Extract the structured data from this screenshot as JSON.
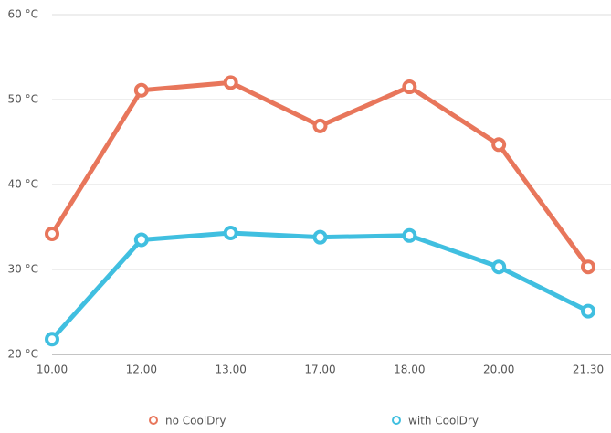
{
  "chart_data": {
    "type": "line",
    "categories": [
      "10.00",
      "12.00",
      "13.00",
      "17.00",
      "18.00",
      "20.00",
      "21.30"
    ],
    "series": [
      {
        "name": "no CoolDry",
        "color": "#e8765b",
        "values": [
          34.2,
          51.1,
          52.0,
          46.9,
          51.5,
          44.7,
          30.3
        ]
      },
      {
        "name": "with CoolDry",
        "color": "#40bfe0",
        "values": [
          21.8,
          33.5,
          34.3,
          33.8,
          34.0,
          30.3,
          25.1
        ]
      }
    ],
    "ylim": [
      20,
      60
    ],
    "yticks": [
      {
        "value": 20,
        "label": "20 °C"
      },
      {
        "value": 30,
        "label": "30 °C"
      },
      {
        "value": 40,
        "label": "40 °C"
      },
      {
        "value": 50,
        "label": "50 °C"
      },
      {
        "value": 60,
        "label": "60 °C"
      }
    ],
    "grid": true
  }
}
